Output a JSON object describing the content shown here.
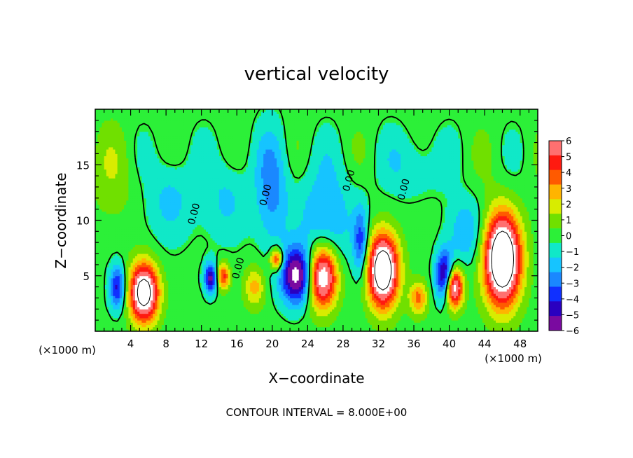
{
  "chart_data": {
    "type": "heatmap",
    "title": "vertical velocity",
    "xlabel": "X−coordinate",
    "ylabel": "Z−coordinate",
    "x_unit_left": "(×1000 m)",
    "x_unit_right": "(×1000 m)",
    "footer": "CONTOUR INTERVAL = 8.000E+00",
    "xlim": [
      0,
      50
    ],
    "ylim": [
      0,
      20
    ],
    "x_ticks": [
      4,
      8,
      12,
      16,
      20,
      24,
      28,
      32,
      36,
      40,
      44,
      48
    ],
    "y_ticks": [
      5,
      10,
      15
    ],
    "colorbar": {
      "min": -6,
      "max": 6,
      "tick_labels": [
        "6",
        "5",
        "4",
        "3",
        "2",
        "1",
        "0",
        "−1",
        "−2",
        "−3",
        "−4",
        "−5",
        "−6"
      ]
    },
    "contour_labels": [
      {
        "text": "0.00",
        "x": 11.5,
        "y": 10.5
      },
      {
        "text": "0.00",
        "x": 16.5,
        "y": 5.6
      },
      {
        "text": "0.00",
        "x": 19.6,
        "y": 12.2
      },
      {
        "text": "0.00",
        "x": 29.0,
        "y": 13.5
      },
      {
        "text": "0.00",
        "x": 35.2,
        "y": 12.7
      }
    ],
    "features": [
      {
        "x": 5.5,
        "y": 3.5,
        "amp": 10,
        "sx": 1.6,
        "sy": 2.6
      },
      {
        "x": 13.0,
        "y": 4.8,
        "amp": -6,
        "sx": 0.7,
        "sy": 1.4
      },
      {
        "x": 14.5,
        "y": 5.0,
        "amp": 5,
        "sx": 0.7,
        "sy": 1.2
      },
      {
        "x": 18.0,
        "y": 4.0,
        "amp": 3,
        "sx": 1.2,
        "sy": 1.8
      },
      {
        "x": 20.5,
        "y": 6.5,
        "amp": 6,
        "sx": 0.7,
        "sy": 1.0
      },
      {
        "x": 23.0,
        "y": 5.0,
        "amp": -8,
        "sx": 2.0,
        "sy": 2.5
      },
      {
        "x": 25.5,
        "y": 5.0,
        "amp": 10,
        "sx": 1.8,
        "sy": 2.8
      },
      {
        "x": 20.0,
        "y": 13.0,
        "amp": -2.8,
        "sx": 1.8,
        "sy": 5.0
      },
      {
        "x": 26.0,
        "y": 10.0,
        "amp": -2.5,
        "sx": 3.5,
        "sy": 5.0
      },
      {
        "x": 32.5,
        "y": 5.5,
        "amp": 11,
        "sx": 1.7,
        "sy": 3.2
      },
      {
        "x": 36.5,
        "y": 3.0,
        "amp": 4,
        "sx": 1.0,
        "sy": 1.5
      },
      {
        "x": 39.5,
        "y": 5.0,
        "amp": -7,
        "sx": 1.0,
        "sy": 2.2
      },
      {
        "x": 40.5,
        "y": 4.0,
        "amp": 9,
        "sx": 1.0,
        "sy": 1.8
      },
      {
        "x": 42.0,
        "y": 9.0,
        "amp": -2.5,
        "sx": 2.0,
        "sy": 3.0
      },
      {
        "x": 46.0,
        "y": 6.5,
        "amp": 12,
        "sx": 2.0,
        "sy": 4.0
      },
      {
        "x": 2.5,
        "y": 4.0,
        "amp": -5,
        "sx": 0.9,
        "sy": 2.0
      },
      {
        "x": 8.5,
        "y": 12.0,
        "amp": -2.0,
        "sx": 2.5,
        "sy": 4.0
      },
      {
        "x": 30.0,
        "y": 8.0,
        "amp": -4,
        "sx": 0.8,
        "sy": 3.0
      },
      {
        "x": 15.0,
        "y": 12.0,
        "amp": -1.8,
        "sx": 2.5,
        "sy": 4.0
      },
      {
        "x": 2.0,
        "y": 14.0,
        "amp": 1.0,
        "sx": 3.0,
        "sy": 4.0
      },
      {
        "x": 36.0,
        "y": 15.0,
        "amp": -1.6,
        "sx": 3.0,
        "sy": 3.0
      }
    ]
  }
}
